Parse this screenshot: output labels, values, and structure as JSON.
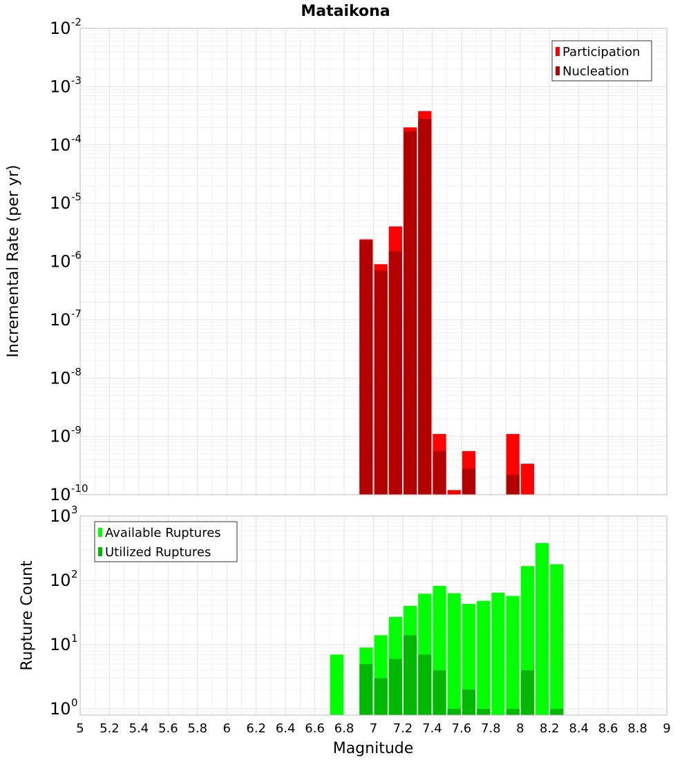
{
  "title": "Mataikona",
  "xlabel": "Magnitude",
  "x_ticks": [
    "5",
    "5.2",
    "5.4",
    "5.6",
    "5.8",
    "6",
    "6.2",
    "6.4",
    "6.6",
    "6.8",
    "7",
    "7.2",
    "7.4",
    "7.6",
    "7.8",
    "8",
    "8.2",
    "8.4",
    "8.6",
    "8.8",
    "9"
  ],
  "colors": {
    "participation": "#ff0000",
    "nucleation": "#b30000",
    "available": "#00ff00",
    "utilized": "#00b800"
  },
  "chart_data": [
    {
      "type": "bar",
      "title": "Mataikona",
      "xlabel": "Magnitude",
      "ylabel": "Incremental Rate (per yr)",
      "yscale": "log",
      "xlim": [
        5,
        9
      ],
      "ylim": [
        1e-10,
        0.01
      ],
      "y_tick_exponents": [
        "-10",
        "-9",
        "-8",
        "-7",
        "-6",
        "-5",
        "-4",
        "-3",
        "-2"
      ],
      "legend_position": "top-right",
      "grid": true,
      "categories": [
        6.95,
        7.05,
        7.15,
        7.25,
        7.35,
        7.45,
        7.55,
        7.65,
        7.95,
        8.05
      ],
      "series": [
        {
          "name": "Participation",
          "color": "#ff0000",
          "values": [
            2.4e-06,
            9e-07,
            4e-06,
            0.0002,
            0.00038,
            1.1e-09,
            1.2e-10,
            5.6e-10,
            1.1e-09,
            3.4e-10
          ]
        },
        {
          "name": "Nucleation",
          "color": "#b30000",
          "values": [
            2.3e-06,
            7e-07,
            1.5e-06,
            0.00017,
            0.00028,
            5.6e-10,
            null,
            2.8e-10,
            2.2e-10,
            null
          ]
        }
      ]
    },
    {
      "type": "bar",
      "xlabel": "Magnitude",
      "ylabel": "Rupture Count",
      "yscale": "log",
      "xlim": [
        5,
        9
      ],
      "ylim": [
        0.8,
        1000
      ],
      "y_tick_exponents": [
        "0",
        "1",
        "2",
        "3"
      ],
      "legend_position": "top-left",
      "grid": true,
      "categories": [
        6.75,
        6.95,
        7.05,
        7.15,
        7.25,
        7.35,
        7.45,
        7.55,
        7.65,
        7.75,
        7.85,
        7.95,
        8.05,
        8.15,
        8.25
      ],
      "series": [
        {
          "name": "Available Ruptures",
          "color": "#00ff00",
          "values": [
            7,
            9,
            14,
            27,
            40,
            62,
            82,
            63,
            43,
            48,
            64,
            57,
            167,
            380,
            178
          ]
        },
        {
          "name": "Utilized Ruptures",
          "color": "#00b800",
          "values": [
            null,
            5,
            3,
            6,
            14,
            7,
            4,
            1,
            2,
            1,
            null,
            1,
            4,
            null,
            1
          ]
        }
      ]
    }
  ]
}
